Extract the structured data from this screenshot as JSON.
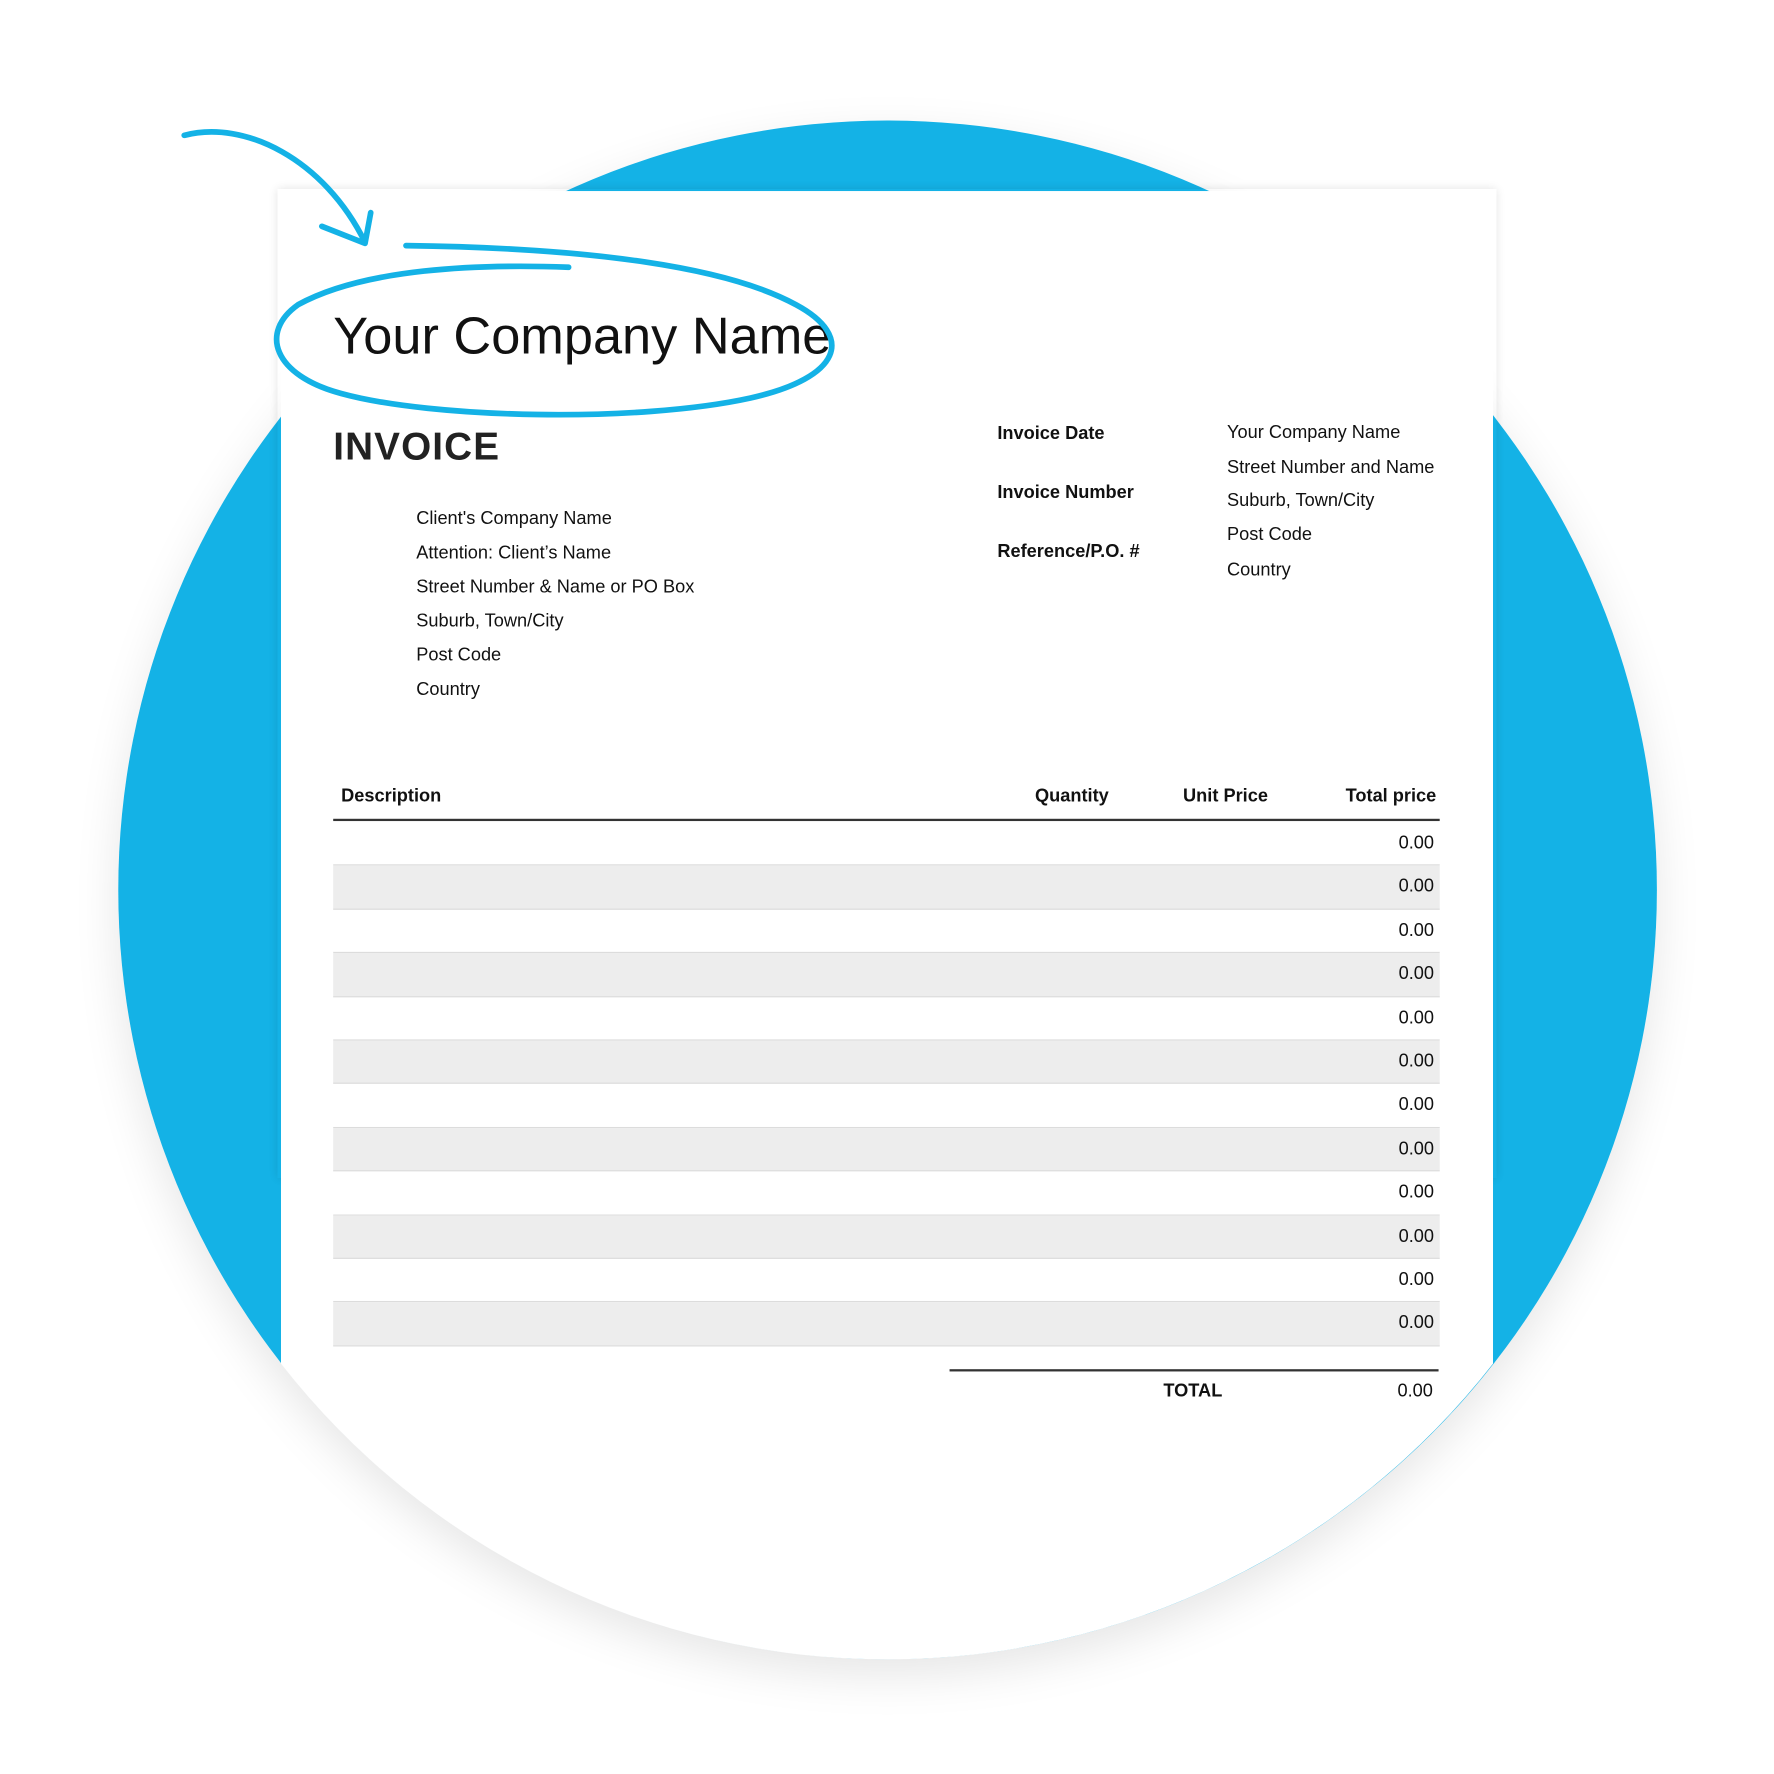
{
  "colors": {
    "accent": "#14b2e6",
    "row_alt": "#ededed"
  },
  "header": {
    "company_name": "Your Company Name",
    "title": "INVOICE"
  },
  "client": [
    "Client's Company Name",
    "Attention: Client’s Name",
    "Street Number & Name or PO Box",
    "Suburb, Town/City",
    "Post Code",
    "Country"
  ],
  "meta": {
    "labels": [
      "Invoice Date",
      "Invoice Number",
      "Reference/P.O. #"
    ]
  },
  "sender": [
    "Your Company Name",
    "Street Number and Name",
    "Suburb, Town/City",
    "Post Code",
    "Country"
  ],
  "table": {
    "columns": [
      "Description",
      "Quantity",
      "Unit Price",
      "Total price"
    ],
    "rows": [
      "0.00",
      "0.00",
      "0.00",
      "0.00",
      "0.00",
      "0.00",
      "0.00",
      "0.00",
      "0.00",
      "0.00",
      "0.00",
      "0.00"
    ]
  },
  "totals": {
    "label": "TOTAL",
    "value": "0.00"
  },
  "annotations": {
    "arrow": "arrow-icon",
    "highlight": "ellipse-highlight"
  }
}
